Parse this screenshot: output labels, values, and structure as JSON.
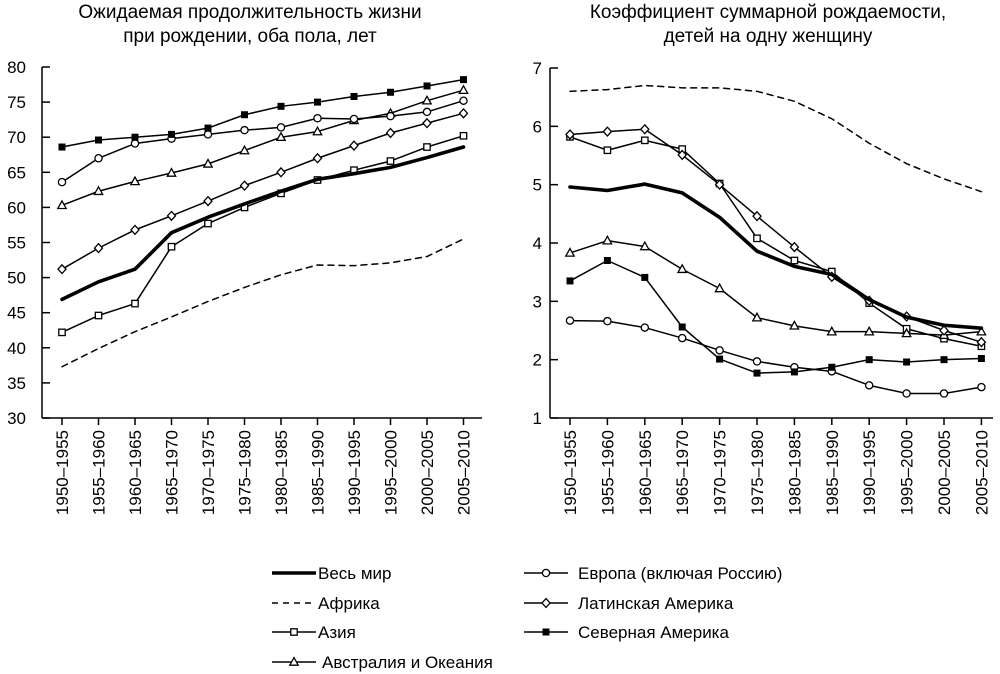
{
  "periods": [
    "1950–1955",
    "1955–1960",
    "1960–1965",
    "1965–1970",
    "1970–1975",
    "1975–1980",
    "1980–1985",
    "1985–1990",
    "1990–1995",
    "1995–2000",
    "2000–2005",
    "2005–2010"
  ],
  "chart_data": [
    {
      "type": "line",
      "title_lines": [
        "Ожидаемая продолжительность жизни",
        "при рождении, оба пола, лет"
      ],
      "xlabel": "",
      "ylabel": "",
      "ylim": [
        30,
        80
      ],
      "yticks": [
        30,
        35,
        40,
        45,
        50,
        55,
        60,
        65,
        70,
        75,
        80
      ],
      "grid": false,
      "series": [
        {
          "name": "Весь мир",
          "key": "world",
          "values": [
            46.9,
            49.4,
            51.2,
            56.4,
            58.6,
            60.5,
            62.3,
            64.0,
            64.8,
            65.7,
            67.1,
            68.6
          ]
        },
        {
          "name": "Африка",
          "key": "africa",
          "values": [
            37.3,
            39.9,
            42.3,
            44.4,
            46.6,
            48.6,
            50.4,
            51.8,
            51.7,
            52.1,
            53.0,
            55.5
          ]
        },
        {
          "name": "Азия",
          "key": "asia",
          "values": [
            42.2,
            44.6,
            46.3,
            54.4,
            57.7,
            60.0,
            62.0,
            63.9,
            65.3,
            66.6,
            68.6,
            70.2
          ]
        },
        {
          "name": "Австралия и Океания",
          "key": "oceania",
          "values": [
            60.3,
            62.3,
            63.7,
            64.9,
            66.2,
            68.1,
            70.0,
            70.8,
            72.4,
            73.4,
            75.2,
            76.7
          ]
        },
        {
          "name": "Европа (включая Россию)",
          "key": "europe",
          "values": [
            63.6,
            67.0,
            69.1,
            69.8,
            70.4,
            71.0,
            71.4,
            72.7,
            72.6,
            73.0,
            73.6,
            75.2
          ]
        },
        {
          "name": "Латинская Америка",
          "key": "latam",
          "values": [
            51.2,
            54.2,
            56.8,
            58.8,
            60.9,
            63.1,
            65.0,
            67.0,
            68.8,
            70.6,
            72.0,
            73.4
          ]
        },
        {
          "name": "Северная Америка",
          "key": "namerica",
          "values": [
            68.6,
            69.6,
            70.0,
            70.4,
            71.3,
            73.2,
            74.4,
            75.0,
            75.8,
            76.4,
            77.3,
            78.2
          ]
        }
      ]
    },
    {
      "type": "line",
      "title_lines": [
        "Коэффициент суммарной рождаемости,",
        "детей на одну женщину"
      ],
      "xlabel": "",
      "ylabel": "",
      "ylim": [
        1,
        7
      ],
      "yticks": [
        1,
        2,
        3,
        4,
        5,
        6,
        7
      ],
      "grid": false,
      "series": [
        {
          "name": "Весь мир",
          "key": "world",
          "values": [
            4.96,
            4.9,
            5.01,
            4.86,
            4.44,
            3.86,
            3.6,
            3.46,
            3.03,
            2.73,
            2.59,
            2.54
          ]
        },
        {
          "name": "Африка",
          "key": "africa",
          "values": [
            6.6,
            6.63,
            6.7,
            6.66,
            6.66,
            6.6,
            6.43,
            6.13,
            5.71,
            5.36,
            5.1,
            4.88
          ]
        },
        {
          "name": "Азия",
          "key": "asia",
          "values": [
            5.82,
            5.59,
            5.76,
            5.61,
            5.02,
            4.08,
            3.7,
            3.51,
            2.97,
            2.53,
            2.36,
            2.23
          ]
        },
        {
          "name": "Австралия и Океания",
          "key": "oceania",
          "values": [
            3.83,
            4.04,
            3.94,
            3.55,
            3.22,
            2.72,
            2.58,
            2.48,
            2.48,
            2.45,
            2.42,
            2.48
          ]
        },
        {
          "name": "Европа (включая Россию)",
          "key": "europe",
          "values": [
            2.67,
            2.66,
            2.55,
            2.37,
            2.16,
            1.97,
            1.87,
            1.8,
            1.56,
            1.42,
            1.42,
            1.53
          ]
        },
        {
          "name": "Латинская Америка",
          "key": "latam",
          "values": [
            5.86,
            5.91,
            5.95,
            5.51,
            5.0,
            4.46,
            3.93,
            3.42,
            3.01,
            2.74,
            2.5,
            2.3
          ]
        },
        {
          "name": "Северная Америка",
          "key": "namerica",
          "values": [
            3.35,
            3.7,
            3.41,
            2.56,
            2.01,
            1.77,
            1.79,
            1.87,
            2.0,
            1.96,
            2.0,
            2.02
          ]
        }
      ]
    }
  ],
  "legend": {
    "placement": "bottom",
    "items": [
      {
        "key": "world",
        "label": "Весь мир"
      },
      {
        "key": "africa",
        "label": "Африка"
      },
      {
        "key": "asia",
        "label": "Азия"
      },
      {
        "key": "oceania",
        "label": "Австралия и Океания"
      },
      {
        "key": "europe",
        "label": "Европа (включая Россию)"
      },
      {
        "key": "latam",
        "label": "Латинская Америка"
      },
      {
        "key": "namerica",
        "label": "Северная Америка"
      }
    ]
  }
}
